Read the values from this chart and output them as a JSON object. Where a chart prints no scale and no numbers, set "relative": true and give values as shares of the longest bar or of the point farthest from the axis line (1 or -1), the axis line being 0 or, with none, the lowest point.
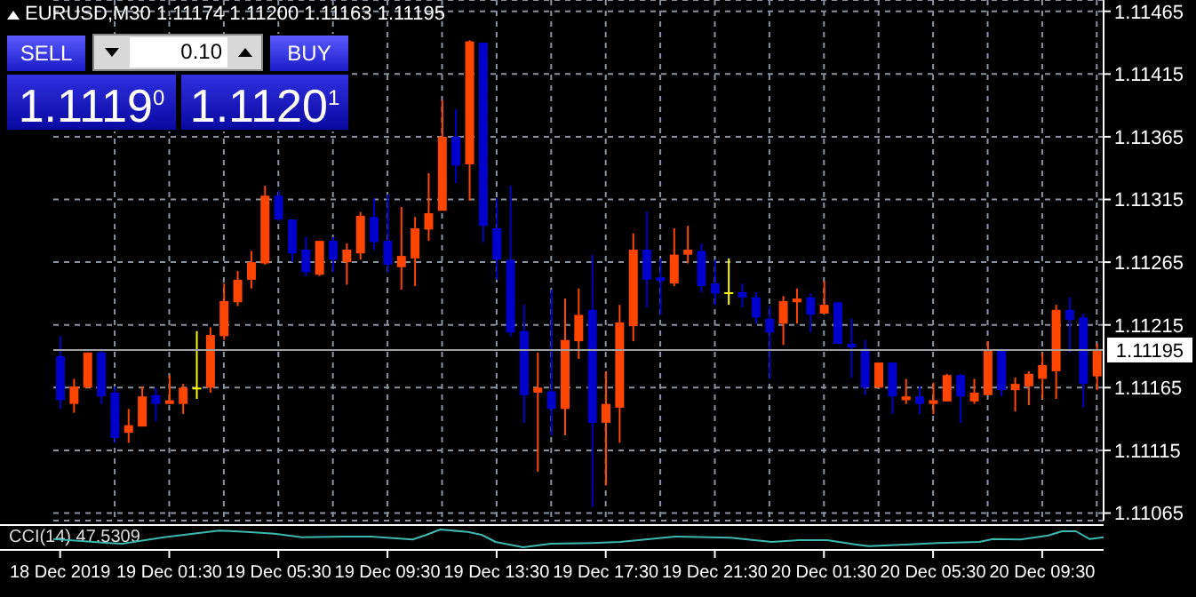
{
  "chart_data": [
    {
      "type": "candlestick",
      "title": "EURUSD,M30  1.11174 1.11200 1.11163 1.11195",
      "annotations": [
        "SELL",
        "0.10",
        "BUY",
        "1.1119$^{0}$",
        "1.1120$^{1}$"
      ],
      "categories": [
        "18 Dec 2019",
        null,
        null,
        null,
        null,
        null,
        null,
        null,
        "19 Dec 01:30",
        null,
        null,
        null,
        null,
        null,
        null,
        null,
        "19 Dec 05:30",
        null,
        null,
        null,
        null,
        null,
        null,
        null,
        "19 Dec 09:30",
        null,
        null,
        null,
        null,
        null,
        null,
        null,
        "19 Dec 13:30",
        null,
        null,
        null,
        null,
        null,
        null,
        null,
        "19 Dec 17:30",
        null,
        null,
        null,
        null,
        null,
        null,
        null,
        "19 Dec 21:30",
        null,
        null,
        null,
        null,
        null,
        null,
        null,
        "20 Dec 01:30",
        null,
        null,
        null,
        null,
        null,
        null,
        null,
        "20 Dec 05:30",
        null,
        null,
        null,
        null,
        null,
        null,
        null,
        "20 Dec 09:30",
        null,
        null,
        null,
        null
      ],
      "ohlc": [
        [
          1.1119,
          1.11206,
          1.11148,
          1.11155
        ],
        [
          1.11152,
          1.11172,
          1.11145,
          1.11166
        ],
        [
          1.11165,
          1.11193,
          1.11165,
          1.11193
        ],
        [
          1.11193,
          1.11196,
          1.11152,
          1.11158
        ],
        [
          1.11161,
          1.11166,
          1.11121,
          1.11125
        ],
        [
          1.11129,
          1.11148,
          1.11121,
          1.11135
        ],
        [
          1.11134,
          1.11166,
          1.11134,
          1.11158
        ],
        [
          1.11159,
          1.11165,
          1.11138,
          1.11152
        ],
        [
          1.11152,
          1.11175,
          1.11152,
          1.11155
        ],
        [
          1.11152,
          1.11168,
          1.11144,
          1.11165
        ],
        [
          1.11165,
          1.1121,
          1.11156,
          1.11165
        ],
        [
          1.11165,
          1.11213,
          1.11161,
          1.11207
        ],
        [
          1.11206,
          1.11248,
          1.11203,
          1.11234
        ],
        [
          1.11233,
          1.11258,
          1.1123,
          1.11251
        ],
        [
          1.11251,
          1.11274,
          1.11244,
          1.11265
        ],
        [
          1.11264,
          1.11326,
          1.11263,
          1.11318
        ],
        [
          1.11318,
          1.11322,
          1.11298,
          1.11299
        ],
        [
          1.11299,
          1.11299,
          1.11265,
          1.11272
        ],
        [
          1.11275,
          1.11285,
          1.11254,
          1.11257
        ],
        [
          1.11255,
          1.11282,
          1.11254,
          1.11282
        ],
        [
          1.11282,
          1.11285,
          1.11257,
          1.11267
        ],
        [
          1.11265,
          1.1128,
          1.11247,
          1.11275
        ],
        [
          1.11272,
          1.11305,
          1.11267,
          1.11302
        ],
        [
          1.11301,
          1.11316,
          1.11275,
          1.11281
        ],
        [
          1.11282,
          1.11319,
          1.11257,
          1.11263
        ],
        [
          1.11261,
          1.11309,
          1.11243,
          1.1127
        ],
        [
          1.11268,
          1.11301,
          1.11246,
          1.11292
        ],
        [
          1.11291,
          1.11336,
          1.11282,
          1.11304
        ],
        [
          1.11306,
          1.11394,
          1.11306,
          1.11365
        ],
        [
          1.11365,
          1.11387,
          1.11328,
          1.11342
        ],
        [
          1.11343,
          1.11442,
          1.11314,
          1.11441
        ],
        [
          1.1144,
          1.1144,
          1.11281,
          1.11294
        ],
        [
          1.11292,
          1.11316,
          1.11251,
          1.11267
        ],
        [
          1.11267,
          1.11326,
          1.11206,
          1.11209
        ],
        [
          1.1121,
          1.11231,
          1.11137,
          1.11159
        ],
        [
          1.11161,
          1.11193,
          1.11098,
          1.11165
        ],
        [
          1.11162,
          1.11243,
          1.11127,
          1.11148
        ],
        [
          1.11148,
          1.11236,
          1.11127,
          1.11203
        ],
        [
          1.11202,
          1.11244,
          1.11188,
          1.11223
        ],
        [
          1.11227,
          1.11271,
          1.1107,
          1.11137
        ],
        [
          1.11137,
          1.11178,
          1.11087,
          1.11152
        ],
        [
          1.11149,
          1.11231,
          1.11121,
          1.11217
        ],
        [
          1.11214,
          1.11288,
          1.11202,
          1.11275
        ],
        [
          1.11275,
          1.11305,
          1.11229,
          1.11251
        ],
        [
          1.11253,
          1.11268,
          1.11223,
          1.1125
        ],
        [
          1.11248,
          1.11292,
          1.11246,
          1.11271
        ],
        [
          1.11271,
          1.11294,
          1.11264,
          1.11275
        ],
        [
          1.11274,
          1.1128,
          1.11241,
          1.11246
        ],
        [
          1.11248,
          1.11267,
          1.11231,
          1.1124
        ],
        [
          1.11241,
          1.11268,
          1.11231,
          1.11241
        ],
        [
          1.11241,
          1.11248,
          1.11229,
          1.11237
        ],
        [
          1.11237,
          1.11241,
          1.11216,
          1.11221
        ],
        [
          1.1122,
          1.1123,
          1.11172,
          1.11209
        ],
        [
          1.11216,
          1.11238,
          1.11199,
          1.11234
        ],
        [
          1.11233,
          1.11244,
          1.11216,
          1.11236
        ],
        [
          1.11237,
          1.1124,
          1.11209,
          1.11223
        ],
        [
          1.11224,
          1.1125,
          1.11224,
          1.11231
        ],
        [
          1.11233,
          1.11233,
          1.112,
          1.112
        ],
        [
          1.112,
          1.1122,
          1.11173,
          1.11197
        ],
        [
          1.11196,
          1.11203,
          1.11159,
          1.11165
        ],
        [
          1.11165,
          1.11185,
          1.11165,
          1.11185
        ],
        [
          1.11185,
          1.11185,
          1.11144,
          1.11158
        ],
        [
          1.11155,
          1.11172,
          1.11152,
          1.11158
        ],
        [
          1.11158,
          1.11166,
          1.11144,
          1.11152
        ],
        [
          1.11152,
          1.11169,
          1.11144,
          1.11155
        ],
        [
          1.11154,
          1.11176,
          1.11154,
          1.11175
        ],
        [
          1.11175,
          1.11176,
          1.11137,
          1.11158
        ],
        [
          1.11154,
          1.11172,
          1.11152,
          1.11161
        ],
        [
          1.11159,
          1.11202,
          1.11159,
          1.11195
        ],
        [
          1.11195,
          1.11196,
          1.11158,
          1.11163
        ],
        [
          1.11163,
          1.11173,
          1.11146,
          1.11168
        ],
        [
          1.11166,
          1.11178,
          1.11151,
          1.11176
        ],
        [
          1.11172,
          1.11193,
          1.11156,
          1.11183
        ],
        [
          1.11178,
          1.11231,
          1.11156,
          1.11227
        ],
        [
          1.11227,
          1.11237,
          1.11193,
          1.11219
        ],
        [
          1.11221,
          1.11224,
          1.11149,
          1.11168
        ],
        [
          1.11174,
          1.112,
          1.11163,
          1.11195
        ]
      ],
      "colors": [
        "#0000cc",
        "#ff4500",
        "#ff4500",
        "#0000cc",
        "#0000cc",
        "#ff4500",
        "#ff4500",
        "#0000cc",
        "#ff4500",
        "#ff4500",
        "#ffff00",
        "#ff4500",
        "#ff4500",
        "#ff4500",
        "#ff4500",
        "#ff4500",
        "#0000cc",
        "#0000cc",
        "#0000cc",
        "#ff4500",
        "#0000cc",
        "#ff4500",
        "#ff4500",
        "#0000cc",
        "#0000cc",
        "#ff4500",
        "#ff4500",
        "#ff4500",
        "#ff4500",
        "#0000cc",
        "#ff4500",
        "#0000cc",
        "#0000cc",
        "#0000cc",
        "#0000cc",
        "#ff4500",
        "#0000cc",
        "#ff4500",
        "#ff4500",
        "#0000cc",
        "#ff4500",
        "#ff4500",
        "#ff4500",
        "#0000cc",
        "#0000cc",
        "#ff4500",
        "#ff4500",
        "#0000cc",
        "#0000cc",
        "#ffff00",
        "#0000cc",
        "#0000cc",
        "#0000cc",
        "#ff4500",
        "#ff4500",
        "#0000cc",
        "#ff4500",
        "#0000cc",
        "#0000cc",
        "#0000cc",
        "#ff4500",
        "#0000cc",
        "#ff4500",
        "#0000cc",
        "#ff4500",
        "#ff4500",
        "#0000cc",
        "#ff4500",
        "#ff4500",
        "#0000cc",
        "#ff4500",
        "#ff4500",
        "#ff4500",
        "#ff4500",
        "#0000cc",
        "#0000cc",
        "#ff4500"
      ],
      "ylim": [
        1.11059,
        1.11474
      ],
      "yticks": [
        1.11065,
        1.11115,
        1.11165,
        1.11215,
        1.11265,
        1.11315,
        1.11365,
        1.11415,
        1.11465
      ],
      "grid": true,
      "ref_lines": [
        {
          "axis": "y",
          "value": 1.11195,
          "label": "1.11195",
          "color": "#a0a0a0"
        }
      ]
    },
    {
      "type": "line",
      "title": "CCI(14) 47.5309",
      "relative": true,
      "tick_labels": false,
      "categories": [
        null,
        null,
        null,
        null,
        null,
        null,
        null,
        null,
        null,
        null,
        null,
        null,
        null,
        null,
        null,
        null,
        null,
        null,
        null,
        null,
        null,
        null,
        null,
        null,
        null,
        null,
        null,
        null,
        null,
        null,
        null,
        null,
        null,
        null,
        null,
        null,
        null,
        null,
        null,
        null,
        null,
        null,
        null,
        null,
        null,
        null,
        null,
        null,
        null,
        null,
        null,
        null,
        null,
        null,
        null,
        null,
        null,
        null,
        null,
        null,
        null,
        null,
        null,
        null,
        null,
        null,
        null,
        null,
        null,
        null,
        null,
        null,
        null,
        null,
        null,
        null,
        null
      ],
      "series": [
        {
          "color": "#3cb8b0",
          "values": [
            0.46,
            null,
            null,
            null,
            0.24,
            0.2,
            null,
            null,
            0.56,
            null,
            null,
            null,
            0.94,
            null,
            0.86,
            null,
            0.76,
            null,
            0.56,
            null,
            null,
            0.6,
            null,
            0.6,
            null,
            null,
            0.44,
            0.7,
            1.0,
            null,
            0.86,
            0.7,
            0.3,
            null,
            0,
            null,
            0.2,
            null,
            null,
            0.24,
            null,
            0.3,
            null,
            null,
            null,
            0.6,
            null,
            null,
            null,
            0.54,
            null,
            null,
            0.3,
            null,
            0.4,
            null,
            0.4,
            null,
            0.16,
            0.06,
            null,
            null,
            0.16,
            null,
            0.24,
            null,
            null,
            0.3,
            0.46,
            null,
            0.44,
            null,
            0.66,
            0.9,
            0.9,
            0.46,
            0.56
          ]
        }
      ]
    }
  ]
}
